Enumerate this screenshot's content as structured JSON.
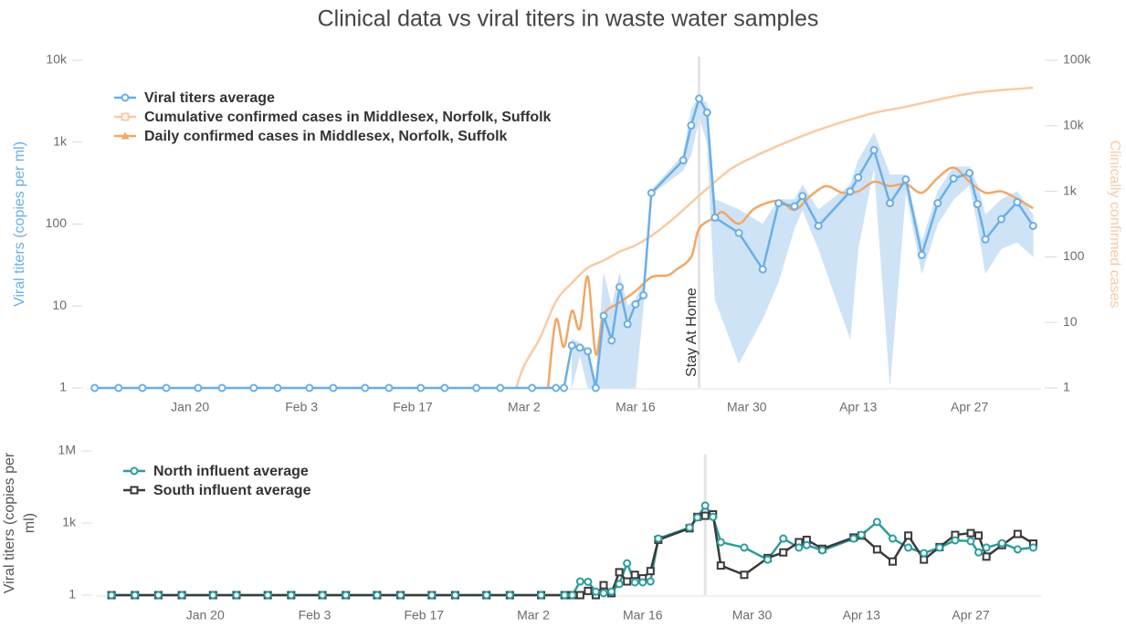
{
  "chart_data": [
    {
      "type": "line",
      "title": "Clinical data vs viral titers in waste water samples",
      "ylabel": "Viral titers (copies per ml)",
      "y2label": "Clinically confirmed cases",
      "log": true,
      "grid": false,
      "legend": "top-left",
      "xlim": [
        "Jan 7",
        "May 6"
      ],
      "xticks": [
        "Jan 20",
        "Feb 3",
        "Feb 17",
        "Mar 2",
        "Mar 16",
        "Mar 30",
        "Apr 13",
        "Apr 27"
      ],
      "ylim": [
        1,
        10000
      ],
      "yticks": [
        1,
        10,
        100,
        {
          "value": 1000,
          "label": "1k"
        },
        {
          "value": 10000,
          "label": "10k"
        }
      ],
      "y2lim": [
        1,
        100000
      ],
      "y2ticks": [
        1,
        10,
        100,
        {
          "value": 1000,
          "label": "1k"
        },
        {
          "value": 10000,
          "label": "10k"
        },
        {
          "value": 100000,
          "label": "100k"
        }
      ],
      "series": [
        {
          "name": "Viral titers average",
          "color": "#6aaee8",
          "band_color": "#cfe3f7",
          "marker": "circle",
          "points": true,
          "x": [
            "Jan 8",
            "Jan 11",
            "Jan 14",
            "Jan 17",
            "Jan 21",
            "Jan 24",
            "Jan 28",
            "Jan 31",
            "Feb 4",
            "Feb 7",
            "Feb 11",
            "Feb 14",
            "Feb 18",
            "Feb 21",
            "Feb 25",
            "Feb 28",
            "Mar 3",
            "Mar 6",
            "Mar 7",
            "Mar 8",
            "Mar 9",
            "Mar 10",
            "Mar 11",
            "Mar 12",
            "Mar 13",
            "Mar 14",
            "Mar 15",
            "Mar 16",
            "Mar 17",
            "Mar 18",
            "Mar 22",
            "Mar 23",
            "Mar 24",
            "Mar 25",
            "Mar 26",
            "Mar 29",
            "Apr 1",
            "Apr 3",
            "Apr 5",
            "Apr 6",
            "Apr 8",
            "Apr 12",
            "Apr 13",
            "Apr 15",
            "Apr 17",
            "Apr 19",
            "Apr 21",
            "Apr 23",
            "Apr 25",
            "Apr 27",
            "Apr 28",
            "Apr 29",
            "May 1",
            "May 3",
            "May 5"
          ],
          "values": [
            1,
            1,
            1,
            1,
            1,
            1,
            1,
            1,
            1,
            1,
            1,
            1,
            1,
            1,
            1,
            1,
            1,
            1,
            1,
            3.3,
            3.1,
            2.8,
            1,
            7.6,
            3.8,
            17,
            6,
            10.5,
            13.5,
            240,
            600,
            1600,
            3400,
            2300,
            120,
            78,
            28,
            180,
            165,
            220,
            95,
            250,
            370,
            800,
            180,
            350,
            42,
            180,
            360,
            420,
            175,
            65,
            115,
            185,
            95
          ],
          "low": [
            null,
            null,
            null,
            null,
            null,
            null,
            null,
            null,
            null,
            null,
            null,
            null,
            null,
            null,
            null,
            null,
            null,
            null,
            null,
            1,
            2.5,
            1,
            1,
            1,
            1,
            1,
            1,
            1,
            10,
            230,
            450,
            700,
            2000,
            1000,
            12,
            2,
            7,
            20,
            90,
            150,
            50,
            4,
            50,
            500,
            1.1,
            250,
            25,
            100,
            200,
            300,
            100,
            25,
            50,
            60,
            40
          ],
          "high": [
            null,
            null,
            null,
            null,
            null,
            null,
            null,
            null,
            null,
            null,
            null,
            null,
            null,
            null,
            null,
            null,
            null,
            null,
            null,
            4,
            3.5,
            3,
            1.2,
            25,
            10,
            25,
            10,
            12,
            20,
            260,
            700,
            2500,
            3500,
            3000,
            200,
            150,
            100,
            200,
            200,
            300,
            150,
            300,
            600,
            1300,
            400,
            400,
            60,
            250,
            500,
            500,
            300,
            130,
            200,
            250,
            130
          ]
        },
        {
          "name": "Cumulative confirmed cases in Middlesex, Norfolk, Suffolk",
          "color": "#f9cba3",
          "marker": "square",
          "points": false,
          "smooth": true,
          "axis": "y2",
          "x": [
            "Mar 1",
            "Mar 2",
            "Mar 4",
            "Mar 6",
            "Mar 8",
            "Mar 10",
            "Mar 12",
            "Mar 14",
            "Mar 16",
            "Mar 18",
            "Mar 20",
            "Mar 22",
            "Mar 24",
            "Mar 26",
            "Mar 28",
            "Mar 30",
            "Apr 3",
            "Apr 7",
            "Apr 11",
            "Apr 15",
            "Apr 19",
            "Apr 23",
            "Apr 27",
            "May 1",
            "May 5"
          ],
          "values": [
            1,
            2.2,
            5.8,
            21,
            40,
            68,
            88,
            120,
            150,
            210,
            320,
            520,
            860,
            1400,
            2200,
            3000,
            5000,
            7800,
            11400,
            15700,
            19500,
            25000,
            31000,
            35000,
            38000
          ]
        },
        {
          "name": "Daily confirmed cases in Middlesex, Norfolk, Suffolk",
          "color": "#f2a765",
          "marker": "triangle",
          "points": false,
          "smooth": true,
          "axis": "y2",
          "x": [
            "Mar 5",
            "Mar 6",
            "Mar 7",
            "Mar 8",
            "Mar 9",
            "Mar 10",
            "Mar 11",
            "Mar 12",
            "Mar 14",
            "Mar 16",
            "Mar 18",
            "Mar 20",
            "Mar 21",
            "Mar 23",
            "Mar 24",
            "Mar 26",
            "Mar 27",
            "Mar 29",
            "Mar 31",
            "Apr 3",
            "Apr 5",
            "Apr 7",
            "Apr 9",
            "Apr 11",
            "Apr 13",
            "Apr 15",
            "Apr 17",
            "Apr 19",
            "Apr 21",
            "Apr 23",
            "Apr 25",
            "Apr 27",
            "Apr 29",
            "May 1",
            "May 3",
            "May 5"
          ],
          "values": [
            1,
            11,
            4.2,
            15,
            8,
            50,
            3.3,
            13,
            20,
            30,
            49,
            52,
            62,
            100,
            270,
            400,
            480,
            320,
            550,
            720,
            520,
            850,
            1200,
            950,
            1000,
            1400,
            1200,
            1300,
            950,
            1600,
            2300,
            1400,
            950,
            1000,
            770,
            550
          ]
        }
      ],
      "annotations": [
        {
          "text": "Stay At Home",
          "x": "Mar 24"
        }
      ]
    },
    {
      "type": "line",
      "ylabel": "Viral titers (copies per ml)",
      "log": true,
      "grid": false,
      "legend": "top-left",
      "xlim": [
        "Jan 6",
        "May 6"
      ],
      "xticks": [
        "Jan 20",
        "Feb 3",
        "Feb 17",
        "Mar 2",
        "Mar 16",
        "Mar 30",
        "Apr 13",
        "Apr 27"
      ],
      "ylim": [
        1,
        1000000
      ],
      "yticks": [
        1,
        {
          "value": 1000,
          "label": "1k"
        },
        {
          "value": 1000000,
          "label": "1M"
        }
      ],
      "x": [
        "Jan 8",
        "Jan 11",
        "Jan 14",
        "Jan 17",
        "Jan 21",
        "Jan 24",
        "Jan 28",
        "Jan 31",
        "Feb 4",
        "Feb 7",
        "Feb 11",
        "Feb 14",
        "Feb 18",
        "Feb 21",
        "Feb 25",
        "Feb 28",
        "Mar 3",
        "Mar 6",
        "Mar 7",
        "Mar 8",
        "Mar 9",
        "Mar 10",
        "Mar 11",
        "Mar 12",
        "Mar 13",
        "Mar 14",
        "Mar 15",
        "Mar 16",
        "Mar 17",
        "Mar 18",
        "Mar 22",
        "Mar 23",
        "Mar 24",
        "Mar 25",
        "Mar 26",
        "Mar 29",
        "Apr 1",
        "Apr 3",
        "Apr 5",
        "Apr 6",
        "Apr 8",
        "Apr 12",
        "Apr 13",
        "Apr 15",
        "Apr 17",
        "Apr 19",
        "Apr 21",
        "Apr 23",
        "Apr 25",
        "Apr 27",
        "Apr 28",
        "Apr 29",
        "May 1",
        "May 3",
        "May 5"
      ],
      "series": [
        {
          "name": "North influent average",
          "color": "#2a9d9b",
          "marker": "circle",
          "points": true,
          "values": [
            1,
            1,
            1,
            1,
            1,
            1,
            1,
            1,
            1,
            1,
            1,
            1,
            1,
            1,
            1,
            1,
            1,
            1,
            1,
            3.7,
            3.6,
            1.4,
            1.2,
            1.4,
            2.9,
            21,
            3.4,
            3.4,
            3.7,
            225,
            650,
            1700,
            5300,
            1800,
            160,
            95,
            30,
            225,
            95,
            120,
            73,
            225,
            320,
            1100,
            225,
            95,
            56,
            95,
            190,
            175,
            60,
            95,
            145,
            80,
            95
          ]
        },
        {
          "name": "South influent average",
          "color": "#3a3a3a",
          "marker": "square",
          "points": true,
          "values": [
            1,
            1,
            1,
            1,
            1,
            1,
            1,
            1,
            1,
            1,
            1,
            1,
            1,
            1,
            1,
            1,
            1,
            1,
            1,
            1,
            1.5,
            1,
            2.6,
            1.2,
            9,
            3.7,
            7,
            5,
            10,
            200,
            600,
            1800,
            2000,
            2300,
            17,
            7,
            35,
            60,
            160,
            200,
            85,
            250,
            300,
            80,
            25,
            300,
            30,
            100,
            320,
            380,
            300,
            40,
            120,
            350,
            140
          ]
        }
      ],
      "vlines": [
        "Mar 24"
      ]
    }
  ]
}
